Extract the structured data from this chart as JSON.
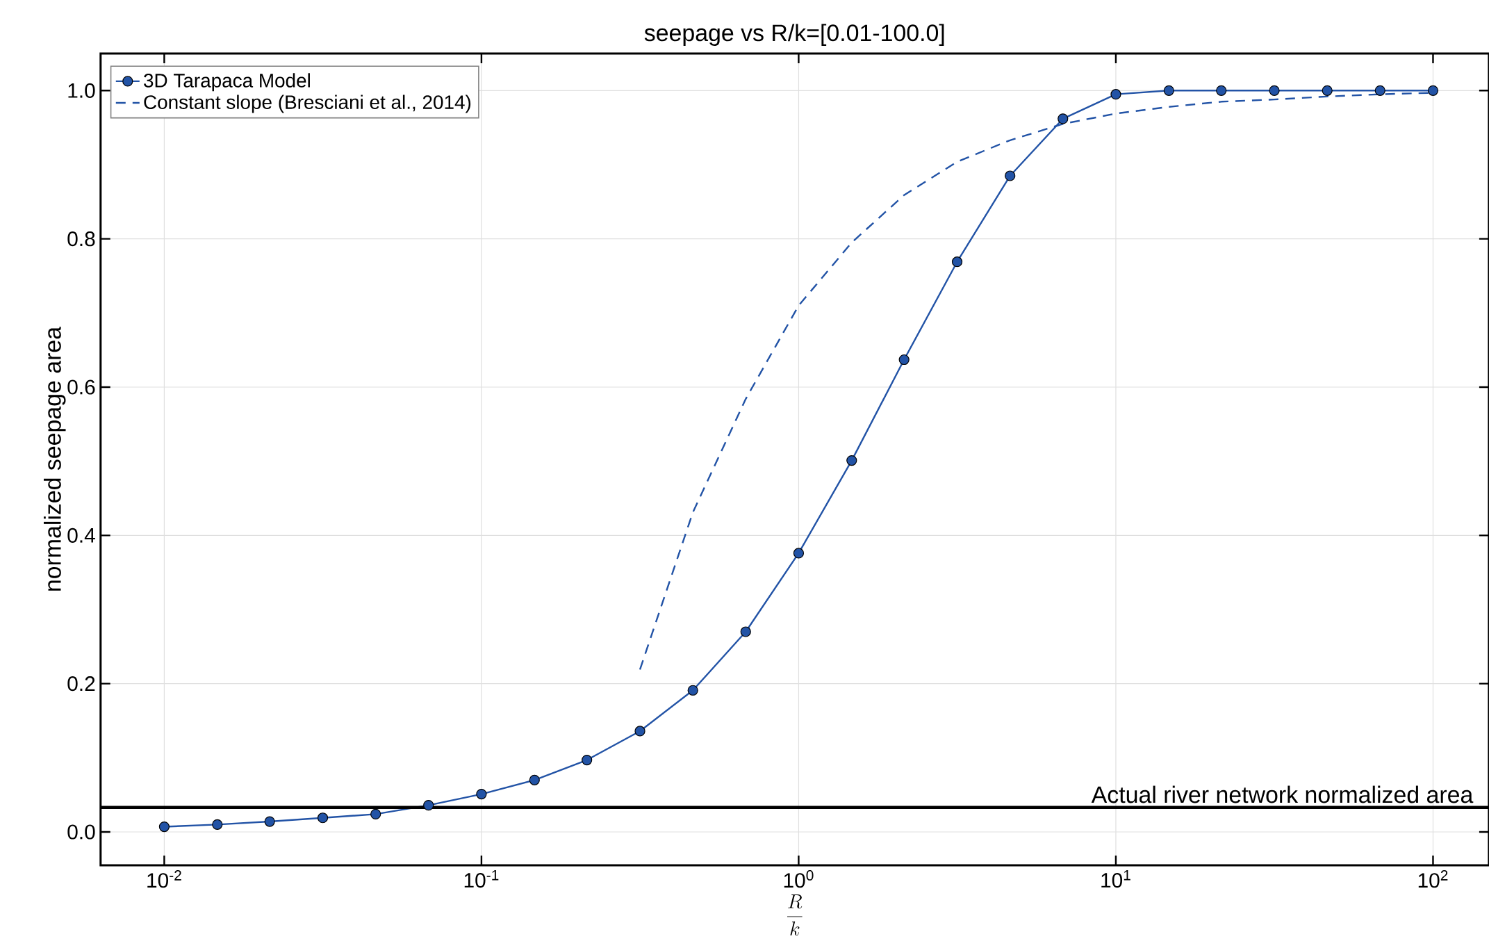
{
  "chart_data": {
    "type": "line",
    "title": "seepage vs R/k=[0.01-100.0]",
    "xlabel": "\\frac{R}{k}",
    "ylabel": "normalized seepage area",
    "log": "x",
    "grid": true,
    "legend": "top left",
    "xlim": [
      0.0063,
      150
    ],
    "ylim": [
      -0.045,
      1.05
    ],
    "xticks": [
      {
        "value": 0.01,
        "label": "10$^{-2}$"
      },
      {
        "value": 0.1,
        "label": "10$^{-1}$"
      },
      {
        "value": 1,
        "label": "10$^{0}$"
      },
      {
        "value": 10,
        "label": "10$^{1}$"
      },
      {
        "value": 100,
        "label": "10$^{2}$"
      }
    ],
    "yticks": [
      {
        "value": 0,
        "label": "0.0"
      },
      {
        "value": 0.2,
        "label": "0.2"
      },
      {
        "value": 0.4,
        "label": "0.4"
      },
      {
        "value": 0.6,
        "label": "0.6"
      },
      {
        "value": 0.8,
        "label": "0.8"
      },
      {
        "value": 1.0,
        "label": "1.0"
      }
    ],
    "ref_lines": [
      {
        "axis": "y",
        "value": 0.033,
        "label": "Actual river network normalized area",
        "color": "#000000"
      }
    ],
    "series": [
      {
        "name": "3D Tarapaca Model",
        "color": "#2253a6",
        "marker": "circle",
        "line_style": "solid",
        "x": [
          0.01,
          0.0147,
          0.0215,
          0.0316,
          0.0464,
          0.0681,
          0.1,
          0.147,
          0.215,
          0.316,
          0.464,
          0.681,
          1,
          1.47,
          2.15,
          3.16,
          4.64,
          6.81,
          10,
          14.7,
          21.5,
          31.6,
          46.4,
          68.1,
          100
        ],
        "values": [
          0.007,
          0.01,
          0.014,
          0.019,
          0.024,
          0.036,
          0.051,
          0.07,
          0.097,
          0.136,
          0.191,
          0.27,
          0.376,
          0.501,
          0.637,
          0.769,
          0.885,
          0.962,
          0.995,
          1.0,
          1.0,
          1.0,
          1.0,
          1.0,
          1.0
        ]
      },
      {
        "name": "Constant slope (Bresciani et al., 2014)",
        "color": "#2253a6",
        "marker": "none",
        "line_style": "dashed",
        "x": [
          0.316,
          0.464,
          0.681,
          1,
          1.47,
          2.15,
          3.16,
          4.64,
          6.81,
          10,
          14.7,
          21.5,
          31.6,
          46.4,
          68.1,
          100
        ],
        "values": [
          0.219,
          0.431,
          0.584,
          0.71,
          0.795,
          0.859,
          0.904,
          0.933,
          0.955,
          0.969,
          0.978,
          0.985,
          0.988,
          0.992,
          0.995,
          0.997
        ]
      }
    ]
  }
}
